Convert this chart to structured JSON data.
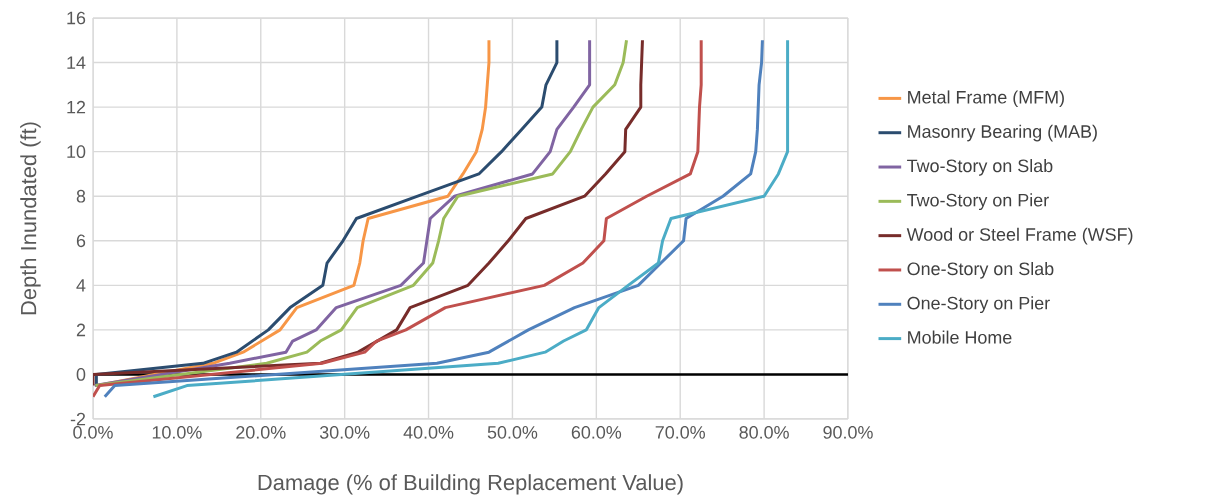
{
  "chart_data": {
    "type": "line",
    "xlabel": "Damage (% of Building Replacement Value)",
    "ylabel": "Depth Inundated (ft)",
    "xlim": [
      0,
      90
    ],
    "ylim": [
      -2,
      16
    ],
    "xticks": [
      {
        "value": 0,
        "label": "0.0%"
      },
      {
        "value": 10,
        "label": "10.0%"
      },
      {
        "value": 20,
        "label": "20.0%"
      },
      {
        "value": 30,
        "label": "30.0%"
      },
      {
        "value": 40,
        "label": "40.0%"
      },
      {
        "value": 50,
        "label": "50.0%"
      },
      {
        "value": 60,
        "label": "60.0%"
      },
      {
        "value": 70,
        "label": "70.0%"
      },
      {
        "value": 80,
        "label": "80.0%"
      },
      {
        "value": 90,
        "label": "90.0%"
      }
    ],
    "yticks": [
      -2,
      0,
      2,
      4,
      6,
      8,
      10,
      12,
      14,
      16
    ],
    "grid": true,
    "legend": "right",
    "ref_lines": [
      {
        "axis": "y",
        "value": 0,
        "color": "#000000"
      }
    ],
    "series": [
      {
        "name": "Metal Frame (MFM)",
        "color": "#f79646",
        "x": [
          0.5,
          14.3,
          17.9,
          22.3,
          24.3,
          31.1,
          31.8,
          32.2,
          32.8,
          42.3,
          44.1,
          45.7,
          46.4,
          46.8,
          47.0,
          47.2,
          47.2
        ],
        "values": [
          -0.5,
          0.5,
          1,
          2,
          3,
          4,
          5,
          6,
          7,
          8,
          9,
          10,
          11,
          12,
          13,
          14,
          15
        ]
      },
      {
        "name": "Masonry Bearing (MAB)",
        "color": "#2b4c6f",
        "x": [
          0.4,
          0.4,
          13.1,
          17.1,
          20.9,
          23.5,
          27.4,
          27.9,
          29.8,
          31.4,
          38.7,
          46.0,
          48.7,
          51.1,
          53.5,
          54.0,
          55.3,
          55.3
        ],
        "values": [
          -0.5,
          0,
          0.5,
          1,
          2,
          3,
          4,
          5,
          6,
          7,
          8,
          9,
          10,
          11,
          12,
          13,
          14,
          15
        ]
      },
      {
        "name": "Two-Story on Slab",
        "color": "#8064a2",
        "x": [
          0.2,
          16.3,
          23.0,
          23.8,
          26.6,
          29.0,
          36.7,
          39.4,
          39.8,
          40.2,
          43.1,
          52.4,
          54.5,
          55.3,
          57.3,
          59.2,
          59.2
        ],
        "values": [
          -0.5,
          0.5,
          1,
          1.5,
          2,
          3,
          4,
          5,
          6,
          7,
          8,
          9,
          10,
          11,
          12,
          13,
          15
        ]
      },
      {
        "name": "Two-Story on Pier",
        "color": "#9bbb59",
        "x": [
          0.3,
          20.7,
          25.5,
          27.1,
          29.6,
          31.5,
          38.2,
          40.5,
          41.2,
          41.8,
          43.5,
          54.8,
          56.9,
          58.2,
          59.6,
          62.2,
          63.2,
          63.6
        ],
        "values": [
          -0.5,
          0.5,
          1,
          1.5,
          2,
          3,
          4,
          5,
          6,
          7,
          8,
          9,
          10,
          11,
          12,
          13,
          14,
          15
        ]
      },
      {
        "name": "Wood or Steel Frame (WSF)",
        "color": "#772c2a",
        "x": [
          0,
          0,
          27.1,
          31.6,
          36.2,
          37.8,
          44.7,
          47.2,
          49.5,
          51.6,
          58.6,
          61.1,
          63.4,
          63.5,
          65.3,
          65.3,
          65.4,
          65.5
        ],
        "values": [
          -0.5,
          0,
          0.5,
          1,
          2,
          3,
          4,
          5,
          6,
          7,
          8,
          9,
          10,
          11,
          12,
          13,
          14,
          15
        ]
      },
      {
        "name": "One-Story on Slab",
        "color": "#c0504d",
        "x": [
          0,
          0.8,
          27.3,
          32.4,
          33.8,
          37.3,
          42.0,
          53.8,
          58.4,
          60.9,
          61.2,
          66.0,
          71.2,
          72.1,
          72.2,
          72.3,
          72.5,
          72.5
        ],
        "values": [
          -1,
          -0.5,
          0.5,
          1,
          1.5,
          2,
          3,
          4,
          5,
          6,
          7,
          8,
          9,
          10,
          11,
          12,
          13,
          15
        ]
      },
      {
        "name": "One-Story on Pier",
        "color": "#4f81bd",
        "x": [
          1.4,
          2.6,
          41.0,
          47.2,
          51.9,
          57.4,
          65.0,
          67.7,
          70.4,
          70.7,
          75.1,
          78.4,
          79.0,
          79.2,
          79.3,
          79.4,
          79.7,
          79.8
        ],
        "values": [
          -1,
          -0.5,
          0.5,
          1,
          2,
          3,
          4,
          5,
          6,
          7,
          8,
          9,
          10,
          11,
          12,
          13,
          14,
          15
        ]
      },
      {
        "name": "Mobile Home",
        "color": "#4bacc6",
        "x": [
          7.2,
          11.2,
          48.3,
          53.9,
          56.1,
          58.8,
          60.3,
          63.8,
          67.4,
          67.9,
          68.9,
          80.0,
          81.7,
          82.8,
          82.8
        ],
        "values": [
          -1,
          -0.5,
          0.5,
          1,
          1.5,
          2,
          3,
          4,
          5,
          6,
          7,
          8,
          9,
          10,
          15
        ]
      }
    ]
  }
}
